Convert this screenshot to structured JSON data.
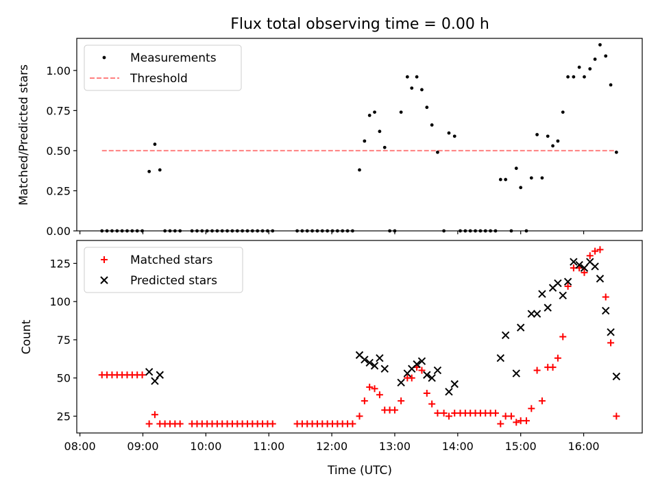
{
  "title": "Flux total observing time = 0.00 h",
  "colors": {
    "measurement": "#000000",
    "threshold": "#ff7f7f",
    "matched": "#ff0000",
    "predicted": "#000000"
  },
  "chart_data": [
    {
      "type": "scatter",
      "title": "Flux total observing time = 0.00 h",
      "ylabel": "Matched/Predicted stars",
      "ylim": [
        0.0,
        1.2
      ],
      "yticks": [
        "0.00",
        "0.25",
        "0.50",
        "0.75",
        "1.00"
      ],
      "xlim": [
        7.95,
        16.93
      ],
      "legend": {
        "placement": "top-left",
        "entries": [
          "Measurements",
          "Threshold"
        ]
      },
      "series": [
        {
          "name": "Measurements",
          "marker": "dot",
          "x": [
            8.35,
            8.43,
            8.51,
            8.59,
            8.67,
            8.75,
            8.83,
            8.91,
            8.99,
            9.1,
            9.19,
            9.27,
            9.35,
            9.43,
            9.51,
            9.59,
            9.78,
            9.86,
            9.94,
            10.02,
            10.1,
            10.18,
            10.26,
            10.34,
            10.42,
            10.5,
            10.58,
            10.66,
            10.74,
            10.82,
            10.9,
            10.98,
            11.06,
            11.45,
            11.53,
            11.61,
            11.69,
            11.77,
            11.85,
            11.93,
            12.01,
            12.09,
            12.17,
            12.25,
            12.33,
            12.44,
            12.52,
            12.6,
            12.68,
            12.76,
            12.84,
            12.92,
            13.0,
            13.1,
            13.2,
            13.27,
            13.35,
            13.43,
            13.51,
            13.59,
            13.68,
            13.78,
            13.86,
            13.95,
            14.04,
            14.12,
            14.2,
            14.28,
            14.36,
            14.44,
            14.52,
            14.6,
            14.68,
            14.76,
            14.85,
            14.93,
            15.0,
            15.09,
            15.17,
            15.26,
            15.34,
            15.43,
            15.51,
            15.59,
            15.67,
            15.75,
            15.84,
            15.93,
            16.01,
            16.1,
            16.18,
            16.26,
            16.35,
            16.43,
            16.52
          ],
          "y": [
            0.0,
            0.0,
            0.0,
            0.0,
            0.0,
            0.0,
            0.0,
            0.0,
            0.0,
            0.37,
            0.54,
            0.38,
            0.0,
            0.0,
            0.0,
            0.0,
            0.0,
            0.0,
            0.0,
            0.0,
            0.0,
            0.0,
            0.0,
            0.0,
            0.0,
            0.0,
            0.0,
            0.0,
            0.0,
            0.0,
            0.0,
            0.0,
            0.0,
            0.0,
            0.0,
            0.0,
            0.0,
            0.0,
            0.0,
            0.0,
            0.0,
            0.0,
            0.0,
            0.0,
            0.0,
            0.38,
            0.56,
            0.72,
            0.74,
            0.62,
            0.52,
            0.0,
            0.0,
            0.74,
            0.96,
            0.89,
            0.96,
            0.88,
            0.77,
            0.66,
            0.49,
            0.0,
            0.61,
            0.59,
            0.0,
            0.0,
            0.0,
            0.0,
            0.0,
            0.0,
            0.0,
            0.0,
            0.32,
            0.32,
            0.0,
            0.39,
            0.27,
            0.0,
            0.33,
            0.6,
            0.33,
            0.59,
            0.53,
            0.56,
            0.74,
            0.96,
            0.96,
            1.02,
            0.96,
            1.01,
            1.07,
            1.16,
            1.09,
            0.91,
            0.49
          ]
        },
        {
          "name": "Threshold",
          "marker": "dashed-line",
          "x": [
            8.35,
            16.52
          ],
          "y": [
            0.5,
            0.5
          ]
        }
      ]
    },
    {
      "type": "scatter",
      "xlabel": "Time (UTC)",
      "ylabel": "Count",
      "ylim": [
        14,
        140
      ],
      "yticks": [
        "25",
        "50",
        "75",
        "100",
        "125"
      ],
      "xlim": [
        7.95,
        16.93
      ],
      "xticks": [
        "08:00",
        "09:00",
        "10:00",
        "11:00",
        "12:00",
        "13:00",
        "14:00",
        "15:00",
        "16:00"
      ],
      "legend": {
        "placement": "top-left",
        "entries": [
          "Matched stars",
          "Predicted stars"
        ]
      },
      "series": [
        {
          "name": "Matched stars",
          "marker": "plus",
          "x": [
            8.35,
            8.43,
            8.51,
            8.59,
            8.67,
            8.75,
            8.83,
            8.91,
            8.99,
            9.1,
            9.19,
            9.27,
            9.35,
            9.43,
            9.51,
            9.59,
            9.78,
            9.86,
            9.94,
            10.02,
            10.1,
            10.18,
            10.26,
            10.34,
            10.42,
            10.5,
            10.58,
            10.66,
            10.74,
            10.82,
            10.9,
            10.98,
            11.06,
            11.45,
            11.53,
            11.61,
            11.69,
            11.77,
            11.85,
            11.93,
            12.01,
            12.09,
            12.17,
            12.25,
            12.33,
            12.44,
            12.52,
            12.6,
            12.68,
            12.76,
            12.84,
            12.92,
            13.0,
            13.1,
            13.2,
            13.27,
            13.35,
            13.43,
            13.51,
            13.59,
            13.68,
            13.78,
            13.86,
            13.95,
            14.04,
            14.12,
            14.2,
            14.28,
            14.36,
            14.44,
            14.52,
            14.6,
            14.68,
            14.76,
            14.85,
            14.93,
            15.0,
            15.09,
            15.17,
            15.26,
            15.34,
            15.43,
            15.51,
            15.59,
            15.67,
            15.75,
            15.84,
            15.93,
            16.01,
            16.1,
            16.18,
            16.26,
            16.35,
            16.43,
            16.52
          ],
          "y": [
            52,
            52,
            52,
            52,
            52,
            52,
            52,
            52,
            52,
            20,
            26,
            20,
            20,
            20,
            20,
            20,
            20,
            20,
            20,
            20,
            20,
            20,
            20,
            20,
            20,
            20,
            20,
            20,
            20,
            20,
            20,
            20,
            20,
            20,
            20,
            20,
            20,
            20,
            20,
            20,
            20,
            20,
            20,
            20,
            20,
            25,
            35,
            44,
            43,
            39,
            29,
            29,
            29,
            35,
            50,
            50,
            57,
            55,
            40,
            33,
            27,
            27,
            25,
            27,
            27,
            27,
            27,
            27,
            27,
            27,
            27,
            27,
            20,
            25,
            25,
            21,
            22,
            22,
            30,
            55,
            35,
            57,
            57,
            63,
            77,
            110,
            122,
            122,
            119,
            130,
            133,
            134,
            103,
            73,
            25
          ]
        },
        {
          "name": "Predicted stars",
          "marker": "x",
          "x": [
            9.1,
            9.19,
            9.27,
            12.44,
            12.52,
            12.6,
            12.68,
            12.76,
            12.84,
            13.1,
            13.2,
            13.27,
            13.35,
            13.43,
            13.51,
            13.59,
            13.68,
            13.86,
            13.95,
            14.68,
            14.76,
            14.93,
            15.0,
            15.17,
            15.26,
            15.34,
            15.43,
            15.51,
            15.59,
            15.67,
            15.75,
            15.84,
            15.93,
            16.01,
            16.1,
            16.18,
            16.26,
            16.35,
            16.43,
            16.52
          ],
          "y": [
            54,
            48,
            52,
            65,
            62,
            60,
            58,
            63,
            56,
            47,
            53,
            56,
            59,
            61,
            52,
            50,
            55,
            41,
            46,
            63,
            78,
            53,
            83,
            92,
            92,
            105,
            96,
            109,
            112,
            104,
            113,
            126,
            124,
            122,
            126,
            123,
            115,
            94,
            80,
            51
          ]
        }
      ]
    }
  ]
}
